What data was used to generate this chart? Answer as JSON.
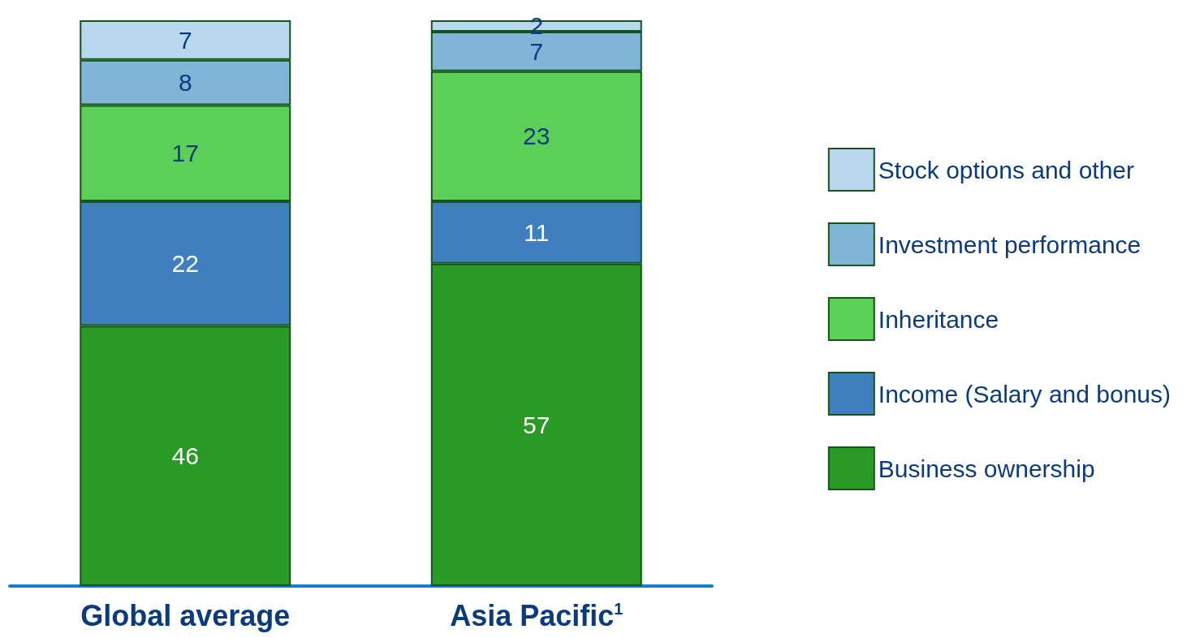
{
  "chart_data": {
    "type": "bar",
    "stacked": true,
    "data_labels": true,
    "legend": "right",
    "categories": [
      "Global average",
      "Asia Pacific$^{1}$"
    ],
    "series": [
      {
        "name": "Business ownership",
        "color": "#2a9a26",
        "values": [
          46,
          57
        ]
      },
      {
        "name": "Income (Salary and bonus)",
        "color": "#3f7fc0",
        "values": [
          22,
          11
        ]
      },
      {
        "name": "Inheritance",
        "color": "#5ccf58",
        "values": [
          17,
          23
        ]
      },
      {
        "name": "Investment performance",
        "color": "#7fb6d8",
        "values": [
          8,
          7
        ]
      },
      {
        "name": "Stock options and other",
        "color": "#b9d8f0",
        "values": [
          7,
          2
        ]
      }
    ]
  }
}
